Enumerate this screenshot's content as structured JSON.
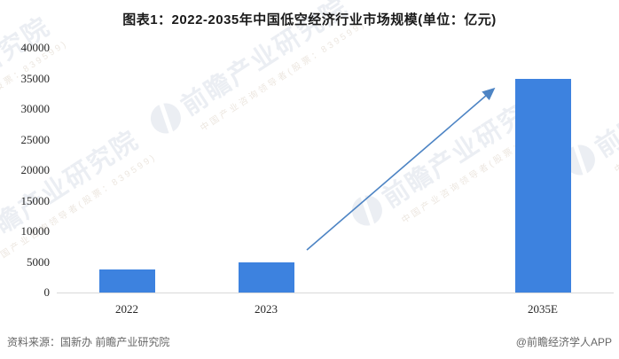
{
  "header": {
    "title": "图表1：2022-2035年中国低空经济行业市场规模(单位：亿元)"
  },
  "chart_data": {
    "type": "bar",
    "title": "图表1：2022-2035年中国低空经济行业市场规模(单位：亿元)",
    "unit": "亿元",
    "categories": [
      "2022",
      "2023",
      "2035E"
    ],
    "values": [
      3700,
      5000,
      35000
    ],
    "ylim": [
      0,
      40000
    ],
    "ytick_interval": 5000,
    "yticks": [
      40000,
      35000,
      30000,
      25000,
      20000,
      15000,
      10000,
      5000,
      0
    ],
    "grid": false,
    "legend_position": "none",
    "bar_color": "#3d82df",
    "axis_line_color": "#d9d9d9",
    "annotation_arrow": {
      "description": "growth trend arrow from 2023 bar to 2035E bar",
      "color": "#4d84c4"
    }
  },
  "footer": {
    "source": "资料来源：国新办 前瞻产业研究院",
    "credit": "@前瞻经济学人APP"
  },
  "watermark": {
    "logo_icon": "qianzhan-logo",
    "text": "前瞻产业研究院",
    "subtext": "中国产业咨询领导者(股票：839599)"
  }
}
